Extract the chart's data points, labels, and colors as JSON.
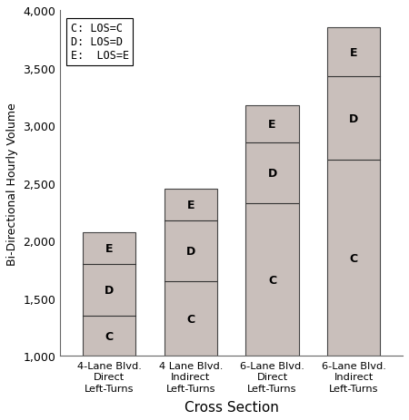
{
  "categories": [
    "4-Lane Blvd.\nDirect\nLeft-Turns",
    "4 Lane Blvd.\nIndirect\nLeft-Turns",
    "6-Lane Blvd.\nDirect\nLeft-Turns",
    "6-Lane Blvd.\nIndirect\nLeft-Turns"
  ],
  "segments": {
    "C": [
      1350,
      1650,
      2325,
      2700
    ],
    "D": [
      1800,
      2175,
      2850,
      3425
    ],
    "E": [
      2075,
      2450,
      3175,
      3850
    ]
  },
  "bar_color": "#c9bfbb",
  "bar_edge_color": "#444444",
  "segment_line_color": "#333333",
  "ylim": [
    1000,
    4000
  ],
  "yticks": [
    1000,
    1500,
    2000,
    2500,
    3000,
    3500,
    4000
  ],
  "ylabel": "Bi-Directional Hourly Volume",
  "xlabel": "Cross Section",
  "legend_text": "C: LOS=C\nD: LOS=D\nE:  LOS=E",
  "bar_width": 0.65,
  "background_color": "#ffffff",
  "fig_width": 4.5,
  "fig_height": 4.64,
  "dpi": 100
}
